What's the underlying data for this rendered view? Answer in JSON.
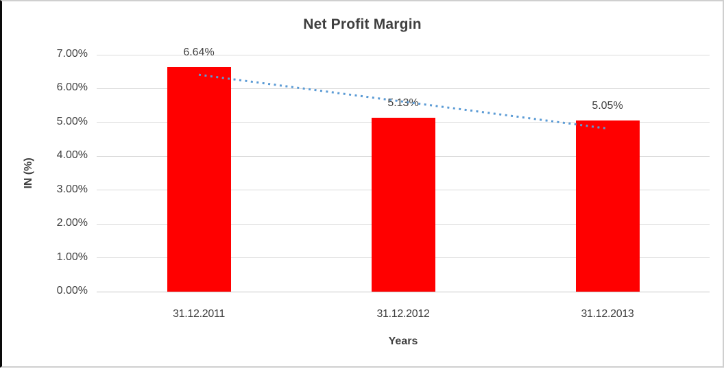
{
  "chart_data": {
    "type": "bar",
    "title": "Net Profit Margin",
    "xlabel": "Years",
    "ylabel": "IN (%)",
    "categories": [
      "31.12.2011",
      "31.12.2012",
      "31.12.2013"
    ],
    "values": [
      6.64,
      5.13,
      5.05
    ],
    "value_labels": [
      "6.64%",
      "5.13%",
      "5.05%"
    ],
    "ylim": [
      0,
      7
    ],
    "ytick_step": 1,
    "ytick_labels": [
      "0.00%",
      "1.00%",
      "2.00%",
      "3.00%",
      "4.00%",
      "5.00%",
      "6.00%",
      "7.00%"
    ],
    "grid": true,
    "legend": "none",
    "bar_color": "#ff0000",
    "gridline_color": "#d9d9d9",
    "text_color": "#404040",
    "trendline": {
      "type": "linear",
      "style": "dotted",
      "color": "#5b9bd5",
      "start_value": 6.41,
      "end_value": 4.82
    }
  }
}
